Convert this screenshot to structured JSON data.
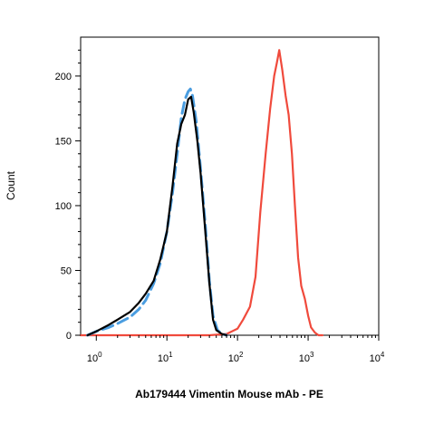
{
  "chart_data": {
    "type": "line",
    "title": "",
    "xlabel": "Ab179444 Vimentin Mouse mAb - PE",
    "ylabel": "Count",
    "x_scale": "log",
    "xlim": [
      0.6,
      10000
    ],
    "ylim": [
      0,
      230
    ],
    "grid": false,
    "legend": "none",
    "x_ticks": [
      {
        "value": 1,
        "base": "10",
        "exp": "0"
      },
      {
        "value": 10,
        "base": "10",
        "exp": "1"
      },
      {
        "value": 100,
        "base": "10",
        "exp": "2"
      },
      {
        "value": 1000,
        "base": "10",
        "exp": "3"
      },
      {
        "value": 10000,
        "base": "10",
        "exp": "4"
      }
    ],
    "y_ticks": [
      {
        "value": 0,
        "label": "0"
      },
      {
        "value": 50,
        "label": "50"
      },
      {
        "value": 100,
        "label": "100"
      },
      {
        "value": 150,
        "label": "150"
      },
      {
        "value": 200,
        "label": "200"
      }
    ],
    "series": [
      {
        "color": "#f04a3c",
        "style": "solid",
        "x": [
          0.6,
          40,
          70,
          100,
          120,
          150,
          180,
          210,
          250,
          290,
          330,
          360,
          390,
          430,
          480,
          530,
          590,
          650,
          720,
          800,
          900,
          1000,
          1100,
          1250,
          1400,
          1600
        ],
        "y": [
          0,
          0,
          1,
          5,
          12,
          22,
          45,
          95,
          140,
          175,
          200,
          210,
          220,
          205,
          185,
          170,
          140,
          100,
          60,
          38,
          28,
          15,
          6,
          2,
          0,
          0
        ]
      },
      {
        "color": "#4a9de0",
        "style": "dashed",
        "x": [
          0.75,
          1.0,
          1.5,
          2.0,
          3.0,
          4.0,
          5.0,
          6.5,
          8.0,
          10,
          12,
          14,
          16,
          18,
          20,
          21.5,
          23,
          26,
          30,
          35,
          40,
          45,
          52,
          60,
          70
        ],
        "y": [
          0,
          3,
          6,
          9,
          14,
          20,
          27,
          40,
          55,
          80,
          110,
          140,
          168,
          182,
          188,
          190,
          185,
          165,
          128,
          85,
          42,
          15,
          4,
          1,
          0
        ]
      },
      {
        "color": "#000000",
        "style": "solid",
        "x": [
          0.75,
          1.0,
          1.5,
          2.0,
          3.0,
          4.0,
          5.0,
          6.5,
          8.0,
          10,
          12,
          14,
          16,
          18,
          20,
          22,
          24,
          27,
          30,
          35,
          40,
          45,
          50,
          60,
          70
        ],
        "y": [
          0,
          3,
          8,
          12,
          18,
          25,
          32,
          42,
          58,
          80,
          115,
          148,
          163,
          170,
          182,
          184,
          172,
          150,
          125,
          80,
          40,
          12,
          4,
          1,
          0
        ]
      }
    ]
  }
}
